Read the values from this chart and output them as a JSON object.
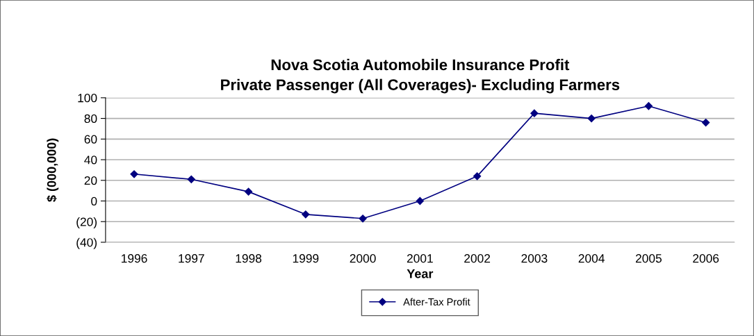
{
  "chart_data": {
    "type": "line",
    "title": "Nova Scotia Automobile Insurance Profit\nPrivate Passenger (All Coverages)- Excluding Farmers",
    "xlabel": "Year",
    "ylabel": "$ (000,000)",
    "categories": [
      "1996",
      "1997",
      "1998",
      "1999",
      "2000",
      "2001",
      "2002",
      "2003",
      "2004",
      "2005",
      "2006"
    ],
    "series": [
      {
        "name": "After-Tax Profit",
        "color": "#000080",
        "values": [
          26,
          21,
          9,
          -13,
          -17,
          0,
          24,
          85,
          80,
          92,
          76
        ]
      }
    ],
    "ylim": [
      -40,
      100
    ],
    "yticks": [
      {
        "value": -40,
        "label": "(40)"
      },
      {
        "value": -20,
        "label": "(20)"
      },
      0,
      20,
      40,
      60,
      80,
      100
    ],
    "grid": "y",
    "legend": "bottom",
    "marker": "diamond",
    "line_style": "solid"
  }
}
